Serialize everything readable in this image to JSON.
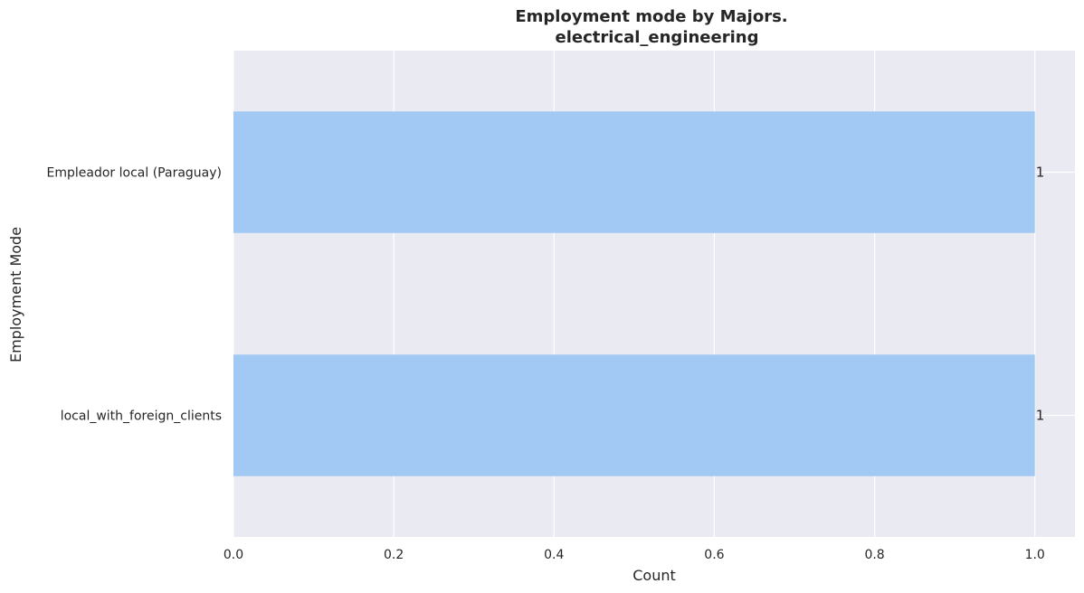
{
  "chart_data": {
    "type": "bar",
    "orientation": "horizontal",
    "title_line1": "Employment mode by Majors.",
    "title_line2": "electrical_engineering",
    "xlabel": "Count",
    "ylabel": "Employment Mode",
    "categories": [
      "Empleador local (Paraguay)",
      "local_with_foreign_clients"
    ],
    "values": [
      1,
      1
    ],
    "data_labels": [
      "1",
      "1"
    ],
    "xlim": [
      0,
      1.05
    ],
    "xticks": [
      0.0,
      0.2,
      0.4,
      0.6,
      0.8,
      1.0
    ],
    "xtick_labels": [
      "0.0",
      "0.2",
      "0.4",
      "0.6",
      "0.8",
      "1.0"
    ],
    "grid": true,
    "colors": {
      "bar": "#a1c9f4",
      "background": "#eaeaf2",
      "grid": "#ffffff",
      "text": "#262626"
    }
  }
}
